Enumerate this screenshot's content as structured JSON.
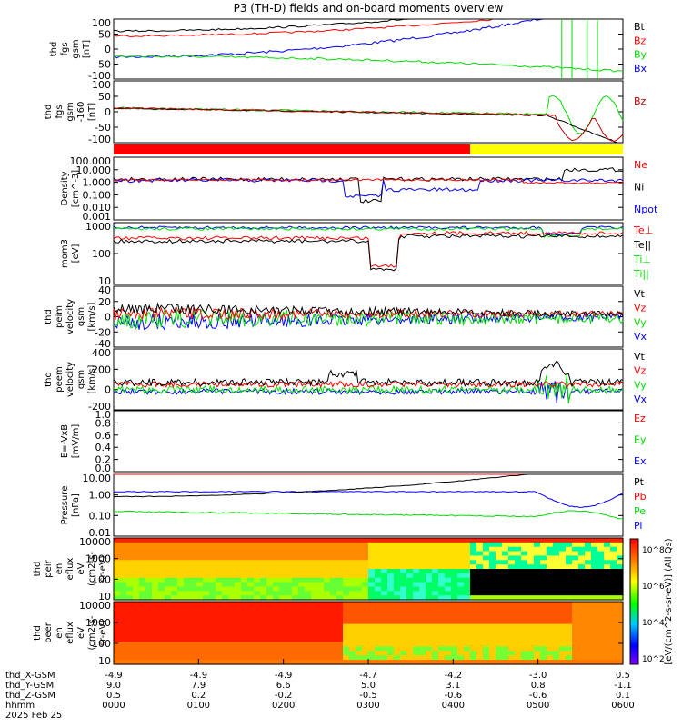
{
  "title": "P3 (TH-D) fields and on-board moments overview",
  "colors": {
    "black": "#000000",
    "red": "#ff0000",
    "green": "#00dd00",
    "blue": "#0000ff",
    "darkred": "#c00000",
    "yellow": "#ffff00"
  },
  "chart_data": [
    {
      "type": "line",
      "ylabel": [
        "thd",
        "fgs",
        "gsm",
        "[nT]"
      ],
      "yticks": [
        "100",
        "50",
        "0",
        "-50",
        "-100"
      ],
      "ylim": [
        -100,
        100
      ],
      "legend": [
        {
          "label": "Bt",
          "color": "black"
        },
        {
          "label": "Bz",
          "color": "red"
        },
        {
          "label": "By",
          "color": "green"
        },
        {
          "label": "Bx",
          "color": "blue"
        }
      ]
    },
    {
      "type": "line",
      "ylabel": [
        "thd",
        "fgs",
        "gsm",
        "-160",
        "[nT]"
      ],
      "yticks": [
        "100",
        "50",
        "0",
        "-50",
        "-100"
      ],
      "ylim": [
        -130,
        100
      ],
      "legend": [
        {
          "label": "Bz",
          "color": "darkred"
        }
      ]
    },
    {
      "type": "bar",
      "note": "mode bar: red = slow survey, yellow = fast survey",
      "segments": [
        {
          "from": "0000",
          "to": "0418",
          "color": "red"
        },
        {
          "from": "0418",
          "to": "0600",
          "color": "yellow"
        }
      ]
    },
    {
      "type": "line",
      "ylabel": [
        "Density",
        "[cm^-3]"
      ],
      "yticks": [
        "100.000",
        "10.000",
        "1.000",
        "0.100",
        "0.010",
        "0.001"
      ],
      "yscale": "log",
      "legend": [
        {
          "label": "Ne",
          "color": "red"
        },
        {
          "label": "Ni",
          "color": "black"
        },
        {
          "label": "Npot",
          "color": "blue"
        }
      ]
    },
    {
      "type": "line",
      "ylabel": [
        "mom3",
        "[eV]"
      ],
      "yticks": [
        "1000",
        "100",
        "10"
      ],
      "yscale": "log",
      "legend": [
        {
          "label": "Te⊥",
          "color": "red"
        },
        {
          "label": "Te||",
          "color": "black"
        },
        {
          "label": "Ti⊥",
          "color": "green"
        },
        {
          "label": "Ti||",
          "color": "green"
        }
      ]
    },
    {
      "type": "line",
      "ylabel": [
        "thd",
        "peim",
        "velocity",
        "gsm",
        "[km/s]"
      ],
      "yticks": [
        "40",
        "20",
        "0",
        "-20",
        "-40"
      ],
      "legend": [
        {
          "label": "Vt",
          "color": "black"
        },
        {
          "label": "Vz",
          "color": "red"
        },
        {
          "label": "Vy",
          "color": "green"
        },
        {
          "label": "Vx",
          "color": "blue"
        }
      ]
    },
    {
      "type": "line",
      "ylabel": [
        "thd",
        "peem",
        "velocity",
        "gsm",
        "[km/s]"
      ],
      "yticks": [
        "400",
        "200",
        "0",
        "-200"
      ],
      "legend": [
        {
          "label": "Vt",
          "color": "black"
        },
        {
          "label": "Vz",
          "color": "red"
        },
        {
          "label": "Vy",
          "color": "green"
        },
        {
          "label": "Vx",
          "color": "blue"
        }
      ]
    },
    {
      "type": "line",
      "ylabel": [
        "E=-VxB",
        "[mV/m]"
      ],
      "yticks": [
        "1.0",
        "0.8",
        "0.6",
        "0.4",
        "0.2",
        "0.0"
      ],
      "legend": [
        {
          "label": "Ez",
          "color": "red"
        },
        {
          "label": "Ey",
          "color": "green"
        },
        {
          "label": "Ex",
          "color": "blue"
        }
      ]
    },
    {
      "type": "line",
      "ylabel": [
        "Pressure",
        "[nPa]"
      ],
      "yticks": [
        "10.00",
        "1.00",
        "0.10",
        "0.01"
      ],
      "yscale": "log",
      "legend": [
        {
          "label": "Pt",
          "color": "black"
        },
        {
          "label": "Pb",
          "color": "red"
        },
        {
          "label": "Pe",
          "color": "green"
        },
        {
          "label": "Pi",
          "color": "blue"
        }
      ]
    },
    {
      "type": "heatmap",
      "ylabel": [
        "thd",
        "peir",
        "en",
        "eflux",
        "eV",
        "(cm2-s-",
        "sr-eV)"
      ],
      "yticks": [
        "10000",
        "1000",
        "100",
        "10"
      ]
    },
    {
      "type": "heatmap",
      "ylabel": [
        "thd",
        "peer",
        "en",
        "eflux",
        "eV",
        "(cm2-s-",
        "sr-eV)"
      ],
      "yticks": [
        "10000",
        "1000",
        "100",
        "10"
      ]
    }
  ],
  "colorbar": {
    "label": "[eV/(cm^2-s-sr-eV)] (All Qs)",
    "ticks": [
      "10^8",
      "10^6",
      "10^4",
      "10^2"
    ]
  },
  "xaxis": {
    "rows": [
      {
        "label": "thd_X-GSM",
        "values": [
          "-4.9",
          "-4.9",
          "-4.9",
          "-4.7",
          "-4.2",
          "-3.0",
          "0.5"
        ]
      },
      {
        "label": "thd_Y-GSM",
        "values": [
          "9.0",
          "7.9",
          "6.6",
          "5.0",
          "3.1",
          "0.8",
          "-1.1"
        ]
      },
      {
        "label": "thd_Z-GSM",
        "values": [
          "0.5",
          "0.2",
          "-0.2",
          "-0.5",
          "-0.6",
          "-0.6",
          "0.1"
        ]
      },
      {
        "label": "hhmm",
        "values": [
          "0000",
          "0100",
          "0200",
          "0300",
          "0400",
          "0500",
          "0600"
        ]
      },
      {
        "label": "2025 Feb 25",
        "values": []
      }
    ]
  }
}
